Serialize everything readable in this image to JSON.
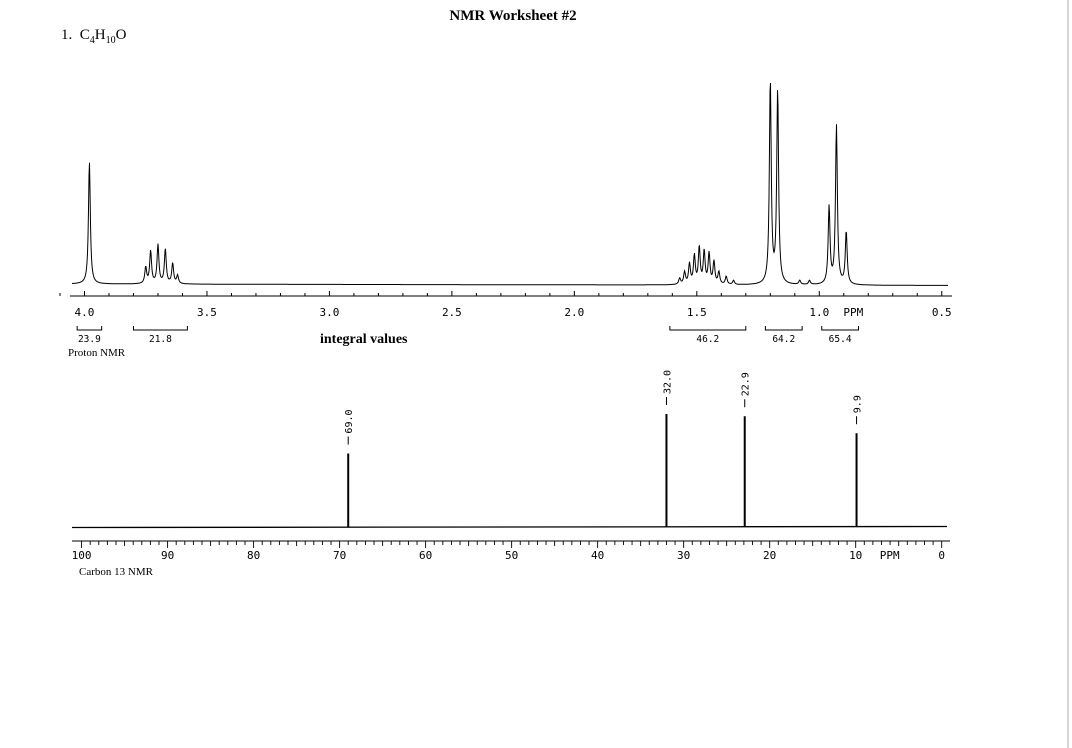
{
  "title": "NMR Worksheet #2",
  "problem": {
    "number": "1.",
    "formula": [
      {
        "t": "C",
        "sub": false
      },
      {
        "t": "4",
        "sub": true
      },
      {
        "t": "H",
        "sub": false
      },
      {
        "t": "10",
        "sub": true
      },
      {
        "t": "O",
        "sub": false
      }
    ]
  },
  "proton": {
    "caption": "Proton NMR",
    "integral_caption": "integral values",
    "ppm_label": "PPM",
    "axis_range_ppm": [
      4.1,
      0.45
    ],
    "tick_labels": [
      {
        "ppm": 4.0,
        "text": "4.0"
      },
      {
        "ppm": 3.5,
        "text": "3.5"
      },
      {
        "ppm": 3.0,
        "text": "3.0"
      },
      {
        "ppm": 2.5,
        "text": "2.5"
      },
      {
        "ppm": 2.0,
        "text": "2.0"
      },
      {
        "ppm": 1.5,
        "text": "1.5"
      },
      {
        "ppm": 1.0,
        "text": "1.0"
      },
      {
        "ppm": 0.5,
        "text": "0.5"
      }
    ],
    "integrals": [
      {
        "from": 4.03,
        "to": 3.93,
        "value": "23.9"
      },
      {
        "from": 3.8,
        "to": 3.58,
        "value": "21.8"
      },
      {
        "from": 1.61,
        "to": 1.3,
        "value": "46.2"
      },
      {
        "from": 1.22,
        "to": 1.07,
        "value": "64.2"
      },
      {
        "from": 0.99,
        "to": 0.84,
        "value": "65.4"
      }
    ],
    "peaks": [
      {
        "ppm": 3.98,
        "height": 0.6
      },
      {
        "ppm": 3.75,
        "height": 0.08
      },
      {
        "ppm": 3.73,
        "height": 0.16
      },
      {
        "ppm": 3.7,
        "height": 0.19
      },
      {
        "ppm": 3.67,
        "height": 0.17
      },
      {
        "ppm": 3.64,
        "height": 0.1
      },
      {
        "ppm": 3.62,
        "height": 0.04
      },
      {
        "ppm": 1.57,
        "height": 0.03
      },
      {
        "ppm": 1.55,
        "height": 0.06
      },
      {
        "ppm": 1.53,
        "height": 0.1
      },
      {
        "ppm": 1.51,
        "height": 0.14
      },
      {
        "ppm": 1.49,
        "height": 0.18
      },
      {
        "ppm": 1.47,
        "height": 0.16
      },
      {
        "ppm": 1.45,
        "height": 0.15
      },
      {
        "ppm": 1.43,
        "height": 0.11
      },
      {
        "ppm": 1.41,
        "height": 0.06
      },
      {
        "ppm": 1.38,
        "height": 0.04
      },
      {
        "ppm": 1.35,
        "height": 0.02
      },
      {
        "ppm": 1.2,
        "height": 1.0
      },
      {
        "ppm": 1.17,
        "height": 0.95
      },
      {
        "ppm": 1.08,
        "height": 0.02
      },
      {
        "ppm": 1.04,
        "height": 0.02
      },
      {
        "ppm": 0.96,
        "height": 0.38
      },
      {
        "ppm": 0.93,
        "height": 0.78
      },
      {
        "ppm": 0.89,
        "height": 0.26
      }
    ]
  },
  "carbon": {
    "caption": "Carbon 13 NMR",
    "ppm_label": "PPM",
    "axis_range_ppm": [
      100.3,
      -0.5
    ],
    "tick_labels": [
      {
        "ppm": 100,
        "text": "100"
      },
      {
        "ppm": 90,
        "text": "90"
      },
      {
        "ppm": 80,
        "text": "80"
      },
      {
        "ppm": 70,
        "text": "70"
      },
      {
        "ppm": 60,
        "text": "60"
      },
      {
        "ppm": 50,
        "text": "50"
      },
      {
        "ppm": 40,
        "text": "40"
      },
      {
        "ppm": 30,
        "text": "30"
      },
      {
        "ppm": 20,
        "text": "20"
      },
      {
        "ppm": 10,
        "text": "10"
      },
      {
        "ppm": 0,
        "text": "0"
      }
    ],
    "peaks": [
      {
        "ppm": 69.0,
        "label": "69.0",
        "height": 0.65
      },
      {
        "ppm": 32.0,
        "label": "32.0",
        "height": 1.0
      },
      {
        "ppm": 22.9,
        "label": "22.9",
        "height": 0.98
      },
      {
        "ppm": 9.9,
        "label": "9.9",
        "height": 0.83
      }
    ]
  }
}
